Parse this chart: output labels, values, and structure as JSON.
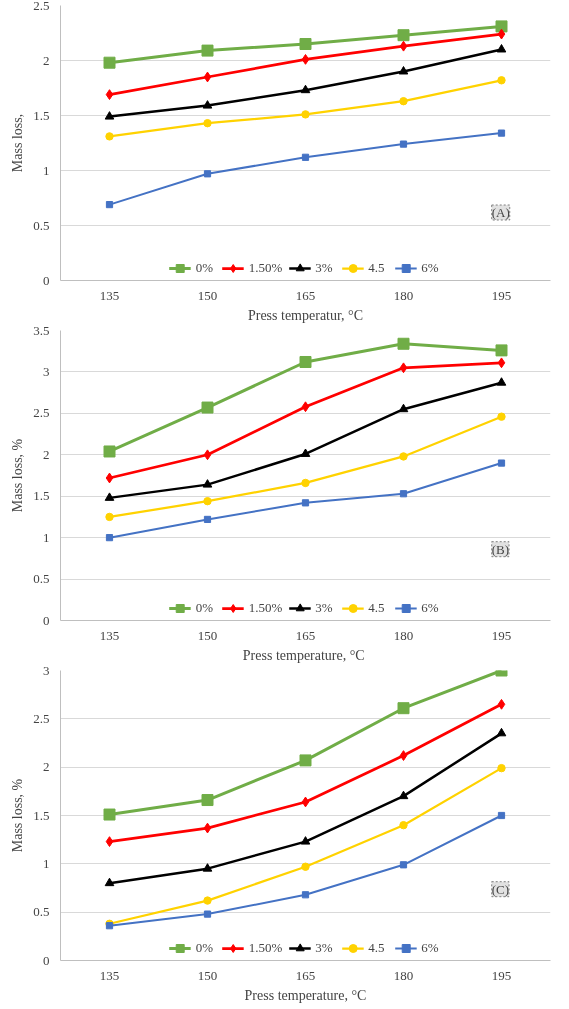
{
  "chart_data": [
    {
      "type": "line",
      "xlabel": "Press temperatur, °C",
      "ylabel": "Mass loss,",
      "categories": [
        "135",
        "150",
        "165",
        "180",
        "195"
      ],
      "ylim": [
        0,
        2.5
      ],
      "yticks": [
        0,
        0.5,
        1,
        1.5,
        2,
        2.5
      ],
      "grid": "y",
      "legend": "bottom",
      "annotations": [
        "(A)"
      ],
      "series": [
        {
          "name": "0%",
          "color": "#70ad47",
          "marker": "square",
          "values": [
            1.98,
            2.09,
            2.15,
            2.23,
            2.31
          ]
        },
        {
          "name": "1.50%",
          "color": "#ff0000",
          "marker": "diamond",
          "values": [
            1.69,
            1.85,
            2.01,
            2.13,
            2.24
          ]
        },
        {
          "name": "3%",
          "color": "#000000",
          "marker": "triangle",
          "values": [
            1.49,
            1.59,
            1.73,
            1.9,
            2.1
          ]
        },
        {
          "name": "4.5",
          "color": "#ffd200",
          "marker": "circle",
          "values": [
            1.31,
            1.43,
            1.51,
            1.63,
            1.82
          ]
        },
        {
          "name": "6%",
          "color": "#4472c4",
          "marker": "square",
          "values": [
            0.69,
            0.97,
            1.12,
            1.24,
            1.34
          ]
        }
      ]
    },
    {
      "type": "line",
      "xlabel": "Press temperature,  °C",
      "ylabel": "Mass loss, %",
      "categories": [
        "135",
        "150",
        "165",
        "180",
        "195"
      ],
      "ylim": [
        0,
        3.5
      ],
      "yticks": [
        0,
        0.5,
        1,
        1.5,
        2,
        2.5,
        3,
        3.5
      ],
      "grid": "y",
      "legend": "bottom",
      "annotations": [
        "(B)"
      ],
      "series": [
        {
          "name": "0%",
          "color": "#70ad47",
          "marker": "square",
          "values": [
            2.04,
            2.57,
            3.12,
            3.34,
            3.26
          ]
        },
        {
          "name": "1.50%",
          "color": "#ff0000",
          "marker": "diamond",
          "values": [
            1.72,
            2.0,
            2.58,
            3.05,
            3.11
          ]
        },
        {
          "name": "3%",
          "color": "#000000",
          "marker": "triangle",
          "values": [
            1.48,
            1.64,
            2.01,
            2.55,
            2.87
          ]
        },
        {
          "name": "4.5",
          "color": "#ffd200",
          "marker": "circle",
          "values": [
            1.25,
            1.44,
            1.66,
            1.98,
            2.46
          ]
        },
        {
          "name": "6%",
          "color": "#4472c4",
          "marker": "square",
          "values": [
            1.0,
            1.22,
            1.42,
            1.53,
            1.9
          ]
        }
      ]
    },
    {
      "type": "line",
      "xlabel": "Press temperature, °C",
      "ylabel": "Mass loss, %",
      "categories": [
        "135",
        "150",
        "165",
        "180",
        "195"
      ],
      "ylim": [
        0,
        3
      ],
      "yticks": [
        0,
        0.5,
        1,
        1.5,
        2,
        2.5,
        3
      ],
      "grid": "y",
      "legend": "bottom",
      "annotations": [
        "(C)"
      ],
      "series": [
        {
          "name": "0%",
          "color": "#70ad47",
          "marker": "square",
          "values": [
            1.51,
            1.66,
            2.07,
            2.61,
            3.0
          ]
        },
        {
          "name": "1.50%",
          "color": "#ff0000",
          "marker": "diamond",
          "values": [
            1.23,
            1.37,
            1.64,
            2.12,
            2.65
          ]
        },
        {
          "name": "3%",
          "color": "#000000",
          "marker": "triangle",
          "values": [
            0.8,
            0.95,
            1.23,
            1.7,
            2.35
          ]
        },
        {
          "name": "4.5",
          "color": "#ffd200",
          "marker": "circle",
          "values": [
            0.38,
            0.62,
            0.97,
            1.4,
            1.99
          ]
        },
        {
          "name": "6%",
          "color": "#4472c4",
          "marker": "square",
          "values": [
            0.36,
            0.48,
            0.68,
            0.99,
            1.5
          ]
        }
      ]
    }
  ]
}
